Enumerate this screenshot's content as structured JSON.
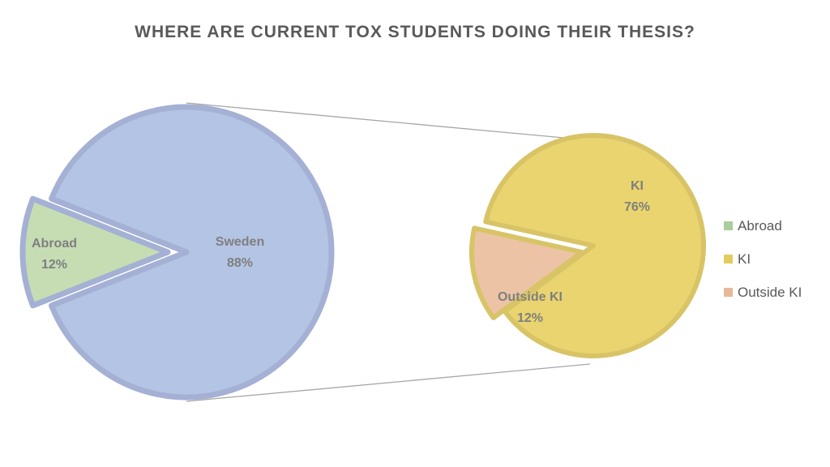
{
  "chart_data": {
    "type": "pie",
    "title": "WHERE ARE CURRENT TOX STUDENTS DOING THEIR THESIS?",
    "primary_pie": {
      "slices": [
        {
          "label": "Sweden",
          "value": 88,
          "value_label": "88%",
          "color": "#B4C4E4",
          "border": "#A4B0D4"
        },
        {
          "label": "Abroad",
          "value": 12,
          "value_label": "12%",
          "color": "#C6DDB4",
          "border": "#A4B0D4"
        }
      ]
    },
    "secondary_pie": {
      "slices": [
        {
          "label": "KI",
          "value": 76,
          "value_label": "76%",
          "color": "#E9D46F",
          "border": "#D8C466"
        },
        {
          "label": "Outside KI",
          "value": 12,
          "value_label": "12%",
          "color": "#ECC3A4",
          "border": "#D8C466"
        }
      ]
    },
    "legend": {
      "placement": "right",
      "entries": [
        {
          "label": "Abroad",
          "color": "#A9CE9C"
        },
        {
          "label": "KI",
          "color": "#E3CC5E"
        },
        {
          "label": "Outside KI",
          "color": "#E8B898"
        }
      ]
    },
    "connector_color": "#A6A6A6"
  }
}
